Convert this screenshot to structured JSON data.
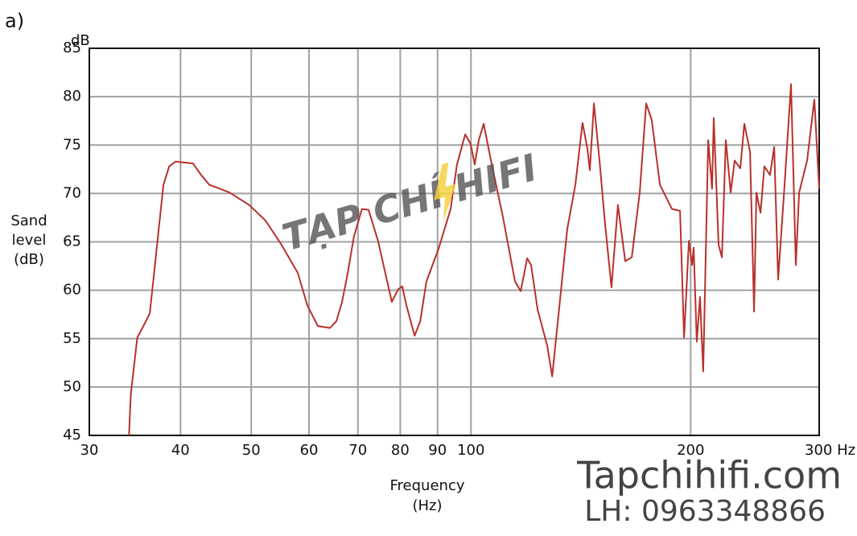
{
  "panel_label": "a)",
  "watermark": {
    "brand": "TẠP CHÍ HIFI",
    "site": "Tapchihifi.com",
    "contact": "LH: 0963348866"
  },
  "chart_data": {
    "type": "line",
    "y_unit": "dB",
    "ylabel": [
      "Sand",
      "level",
      "(dB)"
    ],
    "xlabel": [
      "Frequency",
      "(Hz)"
    ],
    "xscale": "log",
    "xlim": [
      30,
      300
    ],
    "xticks": [
      30,
      40,
      50,
      60,
      70,
      80,
      90,
      100,
      200,
      {
        "value": 300,
        "label": "300 Hz"
      }
    ],
    "ylim": [
      45,
      85
    ],
    "yticks": [
      45,
      50,
      55,
      60,
      65,
      70,
      75,
      80,
      85
    ],
    "grid": true,
    "x": [
      34.0,
      34.2,
      34.9,
      35.7,
      36.3,
      36.7,
      37.2,
      37.9,
      38.6,
      39.4,
      41.6,
      42.7,
      43.8,
      46.7,
      49.7,
      52.3,
      55.0,
      57.9,
      59.7,
      61.7,
      64.1,
      65.4,
      66.6,
      67.8,
      69.1,
      70.9,
      72.4,
      74.6,
      77.9,
      79.5,
      80.5,
      81.6,
      83.7,
      85.2,
      86.9,
      90.3,
      93.8,
      95.7,
      98.2,
      99.9,
      101.2,
      102.5,
      104.1,
      106.5,
      110.6,
      114.9,
      117.0,
      119.4,
      120.9,
      123.4,
      127.2,
      129.2,
      132.2,
      135.5,
      139.0,
      142.2,
      144.4,
      145.5,
      147.4,
      150.0,
      152.7,
      155.8,
      159.0,
      162.7,
      166.1,
      170.3,
      173.8,
      176.9,
      181.5,
      188.5,
      193.4,
      195.9,
      198.9,
      200.9,
      201.9,
      203.9,
      206.0,
      208.1,
      211.4,
      214.0,
      215.1,
      218.4,
      220.7,
      223.5,
      226.9,
      229.8,
      233.9,
      236.9,
      241.2,
      244.3,
      246.1,
      249.3,
      252.4,
      256.9,
      260.3,
      263.6,
      269.0,
      274.5,
      278.7,
      281.6,
      288.8,
      295.5,
      300
    ],
    "series": [
      {
        "color": "#b8312b",
        "values": [
          45.0,
          49.3,
          55.1,
          56.5,
          57.6,
          60.9,
          65.1,
          70.9,
          72.8,
          73.3,
          73.1,
          71.9,
          70.9,
          70.1,
          68.8,
          67.2,
          64.7,
          61.8,
          58.4,
          56.3,
          56.1,
          56.8,
          58.8,
          61.8,
          65.5,
          68.4,
          68.3,
          65.1,
          58.8,
          60.1,
          60.4,
          58.4,
          55.3,
          56.8,
          60.9,
          64.3,
          68.4,
          73.0,
          76.1,
          75.1,
          73.0,
          75.5,
          77.2,
          73.4,
          67.6,
          60.9,
          59.9,
          63.3,
          62.6,
          58.0,
          54.3,
          51.1,
          58.4,
          66.3,
          70.9,
          77.3,
          74.6,
          72.4,
          79.3,
          73.4,
          66.8,
          60.3,
          68.8,
          63.0,
          63.4,
          70.1,
          79.3,
          77.6,
          70.9,
          68.4,
          68.2,
          55.1,
          65.1,
          62.6,
          64.4,
          54.7,
          59.3,
          51.6,
          75.5,
          70.5,
          77.8,
          64.7,
          63.4,
          75.5,
          70.1,
          73.4,
          72.6,
          77.2,
          74.3,
          57.8,
          70.1,
          68.0,
          72.8,
          71.9,
          74.8,
          61.1,
          70.9,
          81.3,
          62.6,
          70.1,
          73.4,
          79.7,
          70.5
        ]
      }
    ]
  }
}
